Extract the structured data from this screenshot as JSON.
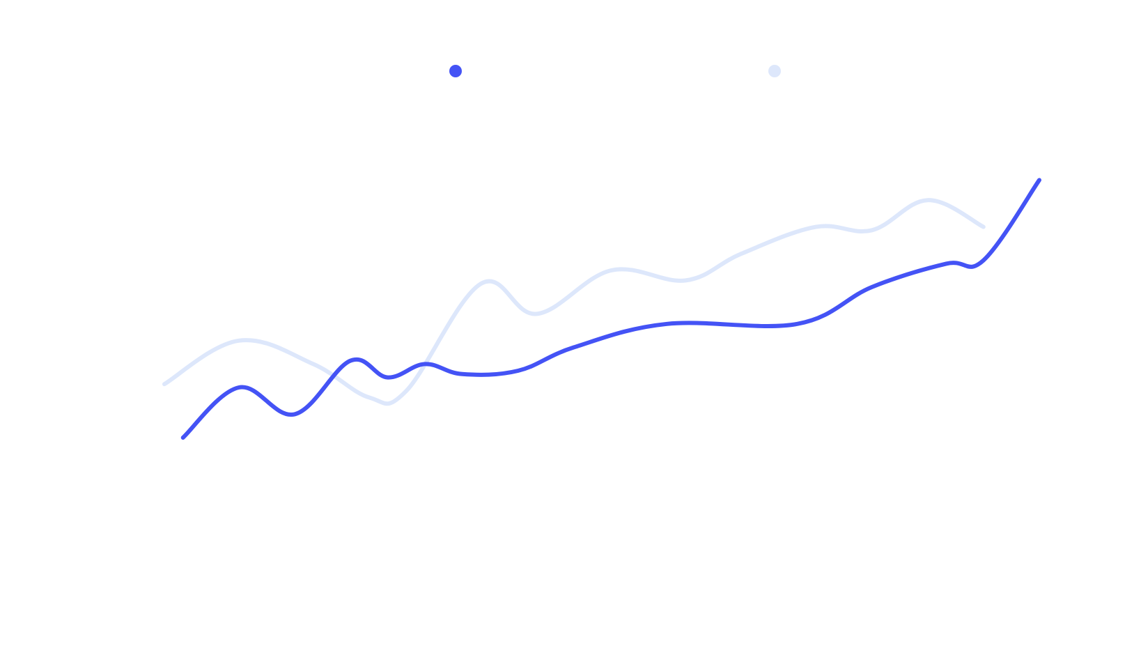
{
  "colors": {
    "background": "#ffffff",
    "series_a": "#4453f5",
    "series_b": "#dde7fb"
  },
  "chart_data": {
    "type": "line",
    "title": "",
    "xlabel": "",
    "ylabel": "",
    "grid": false,
    "axes_visible": false,
    "legend": "top-center",
    "ylim": [
      0,
      100
    ],
    "series": [
      {
        "color": "#4453f5",
        "points": [
          [
            1,
            20
          ],
          [
            4,
            35
          ],
          [
            7,
            27
          ],
          [
            10,
            43
          ],
          [
            12,
            38
          ],
          [
            14,
            42
          ],
          [
            16,
            39
          ],
          [
            19,
            40
          ],
          [
            22,
            47
          ],
          [
            27,
            54
          ],
          [
            34,
            54
          ],
          [
            38,
            65
          ],
          [
            42,
            72
          ],
          [
            44,
            73
          ],
          [
            47,
            97
          ]
        ]
      },
      {
        "color": "#dde7fb",
        "points": [
          [
            0,
            36
          ],
          [
            4,
            49
          ],
          [
            8,
            42
          ],
          [
            11,
            32
          ],
          [
            13,
            34
          ],
          [
            17,
            66
          ],
          [
            20,
            57
          ],
          [
            24,
            70
          ],
          [
            28,
            67
          ],
          [
            31,
            75
          ],
          [
            35,
            83
          ],
          [
            38,
            82
          ],
          [
            41,
            91
          ],
          [
            44,
            83
          ]
        ]
      }
    ]
  }
}
